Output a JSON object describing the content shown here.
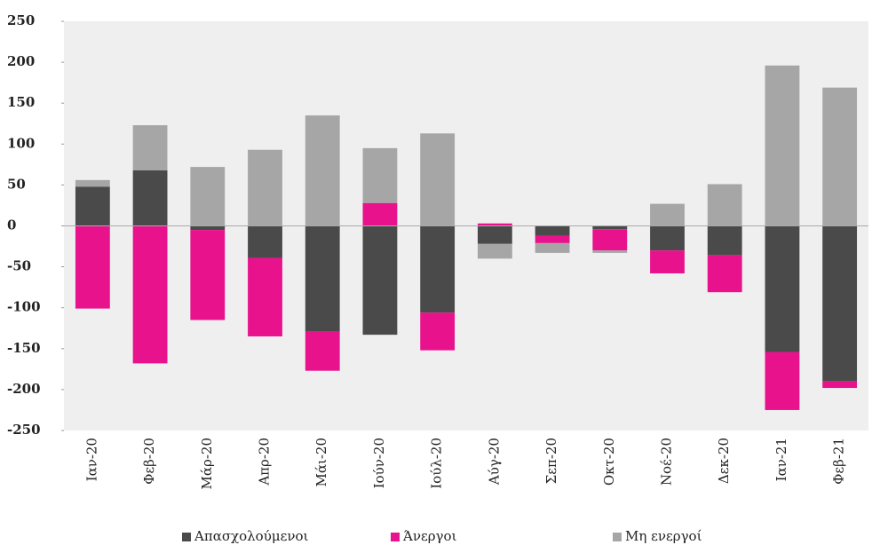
{
  "chart_data": {
    "type": "stacked_bar",
    "categories": [
      "Ιαν-20",
      "Φεβ-20",
      "Μάρ-20",
      "Απρ-20",
      "Μάι-20",
      "Ιούν-20",
      "Ιούλ-20",
      "Αύγ-20",
      "Σεπ-20",
      "Οκτ-20",
      "Νοέ-20",
      "Δεκ-20",
      "Ιαν-21",
      "Φεβ-21"
    ],
    "series": [
      {
        "name": "Απασχολούμενοι",
        "color": "#4a4a4a",
        "values": [
          48,
          68,
          -5,
          -39,
          -129,
          -133,
          -106,
          -22,
          -12,
          -4,
          -30,
          -36,
          -154,
          -190
        ]
      },
      {
        "name": "Άνεργοι",
        "color": "#e8128c",
        "values": [
          -101,
          -168,
          -110,
          -96,
          -48,
          28,
          -46,
          3,
          -9,
          -26,
          -28,
          -45,
          -71,
          -8
        ]
      },
      {
        "name": "Μη ενεργοί",
        "color": "#a6a6a6",
        "values": [
          8,
          55,
          72,
          93,
          135,
          67,
          113,
          -18,
          -12,
          -3,
          27,
          51,
          196,
          169
        ]
      }
    ],
    "ylim": [
      -250,
      250
    ],
    "yticks": [
      -250,
      -200,
      -150,
      -100,
      -50,
      0,
      50,
      100,
      150,
      200,
      250
    ],
    "legend": "bottom"
  }
}
